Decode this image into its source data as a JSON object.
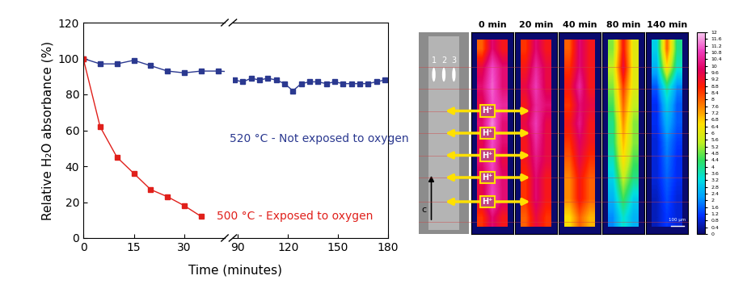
{
  "chart_data": [
    {
      "type": "line",
      "x_label": "Time (minutes)",
      "y_label": "Relative H₂O absorbance (%)",
      "xlim": [
        [
          0,
          42
        ],
        [
          87,
          180
        ]
      ],
      "xticks": [
        [
          0,
          15,
          30
        ],
        [
          90,
          120,
          150,
          180
        ]
      ],
      "ylim": [
        0,
        120
      ],
      "yticks": [
        0,
        20,
        40,
        60,
        80,
        100,
        120
      ],
      "grid": false,
      "series": [
        {
          "name": "520 °C - Not exposed to oxygen",
          "color": "#2b3990",
          "marker": "square",
          "line_style": "solid",
          "x": [
            0,
            5,
            10,
            15,
            20,
            25,
            30,
            35,
            40,
            88,
            93,
            98,
            103,
            108,
            113,
            118,
            123,
            128,
            133,
            138,
            143,
            148,
            153,
            158,
            163,
            168,
            173,
            178
          ],
          "values": [
            100,
            97,
            97,
            99,
            96,
            93,
            92,
            93,
            93,
            88,
            87,
            89,
            88,
            89,
            88,
            86,
            82,
            86,
            87,
            87,
            86,
            87,
            86,
            86,
            86,
            86,
            87,
            88
          ]
        },
        {
          "name": "500 °C - Exposed to oxygen",
          "color": "#e0201b",
          "marker": "square",
          "line_style": "solid",
          "x": [
            0,
            5,
            10,
            15,
            20,
            25,
            30,
            35
          ],
          "values": [
            100,
            62,
            45,
            36,
            27,
            23,
            18,
            12
          ]
        }
      ]
    },
    {
      "type": "heatmap",
      "tick_labels": false,
      "image_labels": {
        "points": [
          "1",
          "2",
          "3"
        ],
        "axis": "c",
        "ion": "H⁺",
        "scale_bar": "100 µm"
      },
      "panels": [
        {
          "title": "0 min",
          "cells": [
            [
              8,
              10,
              9
            ],
            [
              9.5,
              11,
              10
            ],
            [
              10,
              11.2,
              10
            ],
            [
              9.5,
              11,
              10.5
            ],
            [
              10,
              11.5,
              10
            ],
            [
              9.5,
              11,
              10
            ],
            [
              10,
              11,
              9.5
            ],
            [
              9.5,
              10.8,
              10
            ],
            [
              9.5,
              11,
              10
            ],
            [
              8.5,
              10,
              9
            ]
          ]
        },
        {
          "title": "20 min",
          "cells": [
            [
              8.5,
              10,
              9
            ],
            [
              9,
              10.5,
              9.5
            ],
            [
              9.5,
              10.8,
              9.5
            ],
            [
              9,
              10.5,
              10
            ],
            [
              9.5,
              10.8,
              9.5
            ],
            [
              9,
              10.5,
              9.5
            ],
            [
              9,
              10.2,
              9.5
            ],
            [
              8.5,
              10,
              9
            ],
            [
              8.5,
              10,
              9
            ],
            [
              8,
              9.5,
              8.5
            ]
          ]
        },
        {
          "title": "40 min",
          "cells": [
            [
              8,
              10,
              9
            ],
            [
              8.5,
              10,
              9
            ],
            [
              9,
              10.5,
              9
            ],
            [
              8.5,
              10,
              9.5
            ],
            [
              9,
              10.2,
              9
            ],
            [
              8.5,
              9.8,
              9
            ],
            [
              8,
              9.5,
              8.5
            ],
            [
              7.5,
              9,
              8
            ],
            [
              7.5,
              9,
              8
            ],
            [
              6.5,
              8,
              7
            ]
          ]
        },
        {
          "title": "80 min",
          "cells": [
            [
              5,
              9,
              6
            ],
            [
              5.5,
              9.5,
              6
            ],
            [
              5,
              8.5,
              6
            ],
            [
              4.5,
              8,
              5.5
            ],
            [
              4,
              7.5,
              5
            ],
            [
              4,
              7,
              5
            ],
            [
              3.5,
              6.5,
              4.5
            ],
            [
              3,
              5.5,
              4
            ],
            [
              2.5,
              4.5,
              3
            ],
            [
              2,
              3.5,
              2.5
            ]
          ]
        },
        {
          "title": "140 min",
          "cells": [
            [
              3,
              8,
              4
            ],
            [
              2.5,
              6.5,
              3.5
            ],
            [
              1.5,
              4,
              2
            ],
            [
              1,
              3,
              1.5
            ],
            [
              1,
              2.5,
              1.5
            ],
            [
              0.8,
              2,
              1.2
            ],
            [
              0.8,
              1.8,
              1
            ],
            [
              0.8,
              1.6,
              1
            ],
            [
              0.6,
              1.4,
              0.8
            ],
            [
              0.6,
              1.2,
              0.8
            ]
          ]
        }
      ],
      "colorbar": {
        "range": [
          0,
          12
        ],
        "ticks": [
          0,
          0.4,
          0.8,
          1.2,
          1.6,
          2,
          2.4,
          2.8,
          3.2,
          3.6,
          4,
          4.4,
          4.8,
          5.2,
          5.6,
          6,
          6.4,
          6.8,
          7.2,
          7.6,
          8,
          8.4,
          8.8,
          9.2,
          9.6,
          10,
          10.4,
          10.8,
          11.2,
          11.6,
          12
        ]
      }
    }
  ]
}
